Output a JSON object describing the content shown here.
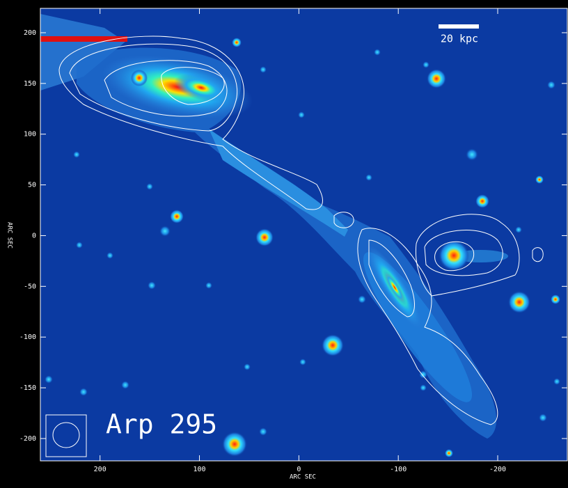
{
  "chart_data": {
    "type": "image",
    "x_label": "ARC SEC",
    "y_label": "ARC SEC",
    "annotations": [
      "Arp 295",
      "20 kpc"
    ],
    "xlim": [
      260,
      -270
    ],
    "ylim": [
      -222,
      224
    ],
    "xticks": [
      200,
      100,
      0,
      -100,
      -200
    ],
    "yticks": [
      200,
      150,
      100,
      50,
      0,
      -50,
      -100,
      -150,
      -200
    ],
    "grid": false
  }
}
